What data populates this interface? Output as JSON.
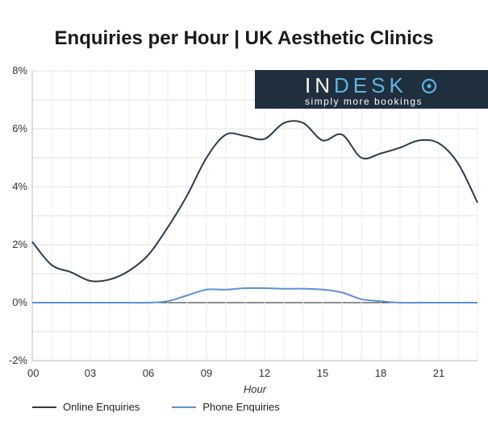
{
  "chart_data": {
    "type": "line",
    "title": "Enquiries per Hour | UK Aesthetic Clinics",
    "xlabel": "Hour",
    "ylabel": "",
    "xlim": [
      0,
      23
    ],
    "ylim": [
      -2,
      8
    ],
    "yticks": [
      -2,
      0,
      2,
      4,
      6,
      8
    ],
    "ytick_labels": [
      "-2%",
      "0%",
      "2%",
      "4%",
      "6%",
      "8%"
    ],
    "xticks": [
      0,
      3,
      6,
      9,
      12,
      15,
      18,
      21
    ],
    "xtick_labels": [
      "00",
      "03",
      "06",
      "09",
      "12",
      "15",
      "18",
      "21"
    ],
    "grid": true,
    "legend_position": "bottom-left",
    "series": [
      {
        "name": "Online Enquiries",
        "color": "#2a3b4c",
        "x": [
          0,
          1,
          2,
          3,
          4,
          5,
          6,
          7,
          8,
          9,
          10,
          11,
          12,
          13,
          14,
          15,
          16,
          17,
          18,
          19,
          20,
          21,
          22,
          23
        ],
        "values": [
          2.1,
          1.3,
          1.05,
          0.75,
          0.8,
          1.1,
          1.65,
          2.6,
          3.7,
          5.0,
          5.8,
          5.75,
          5.65,
          6.2,
          6.2,
          5.6,
          5.8,
          5.0,
          5.15,
          5.35,
          5.6,
          5.5,
          4.8,
          3.45
        ]
      },
      {
        "name": "Phone Enquiries",
        "color": "#5b8fd6",
        "x": [
          0,
          1,
          2,
          3,
          4,
          5,
          6,
          7,
          8,
          9,
          10,
          11,
          12,
          13,
          14,
          15,
          16,
          17,
          18,
          19,
          20,
          21,
          22,
          23
        ],
        "values": [
          0.0,
          0.0,
          0.0,
          0.0,
          0.0,
          0.0,
          0.0,
          0.05,
          0.25,
          0.45,
          0.45,
          0.5,
          0.5,
          0.48,
          0.48,
          0.45,
          0.35,
          0.12,
          0.05,
          0.0,
          0.0,
          0.0,
          0.0,
          0.0
        ]
      }
    ]
  },
  "logo": {
    "name_main": "IN",
    "name_accent": "DESK",
    "tagline": "simply more bookings"
  }
}
